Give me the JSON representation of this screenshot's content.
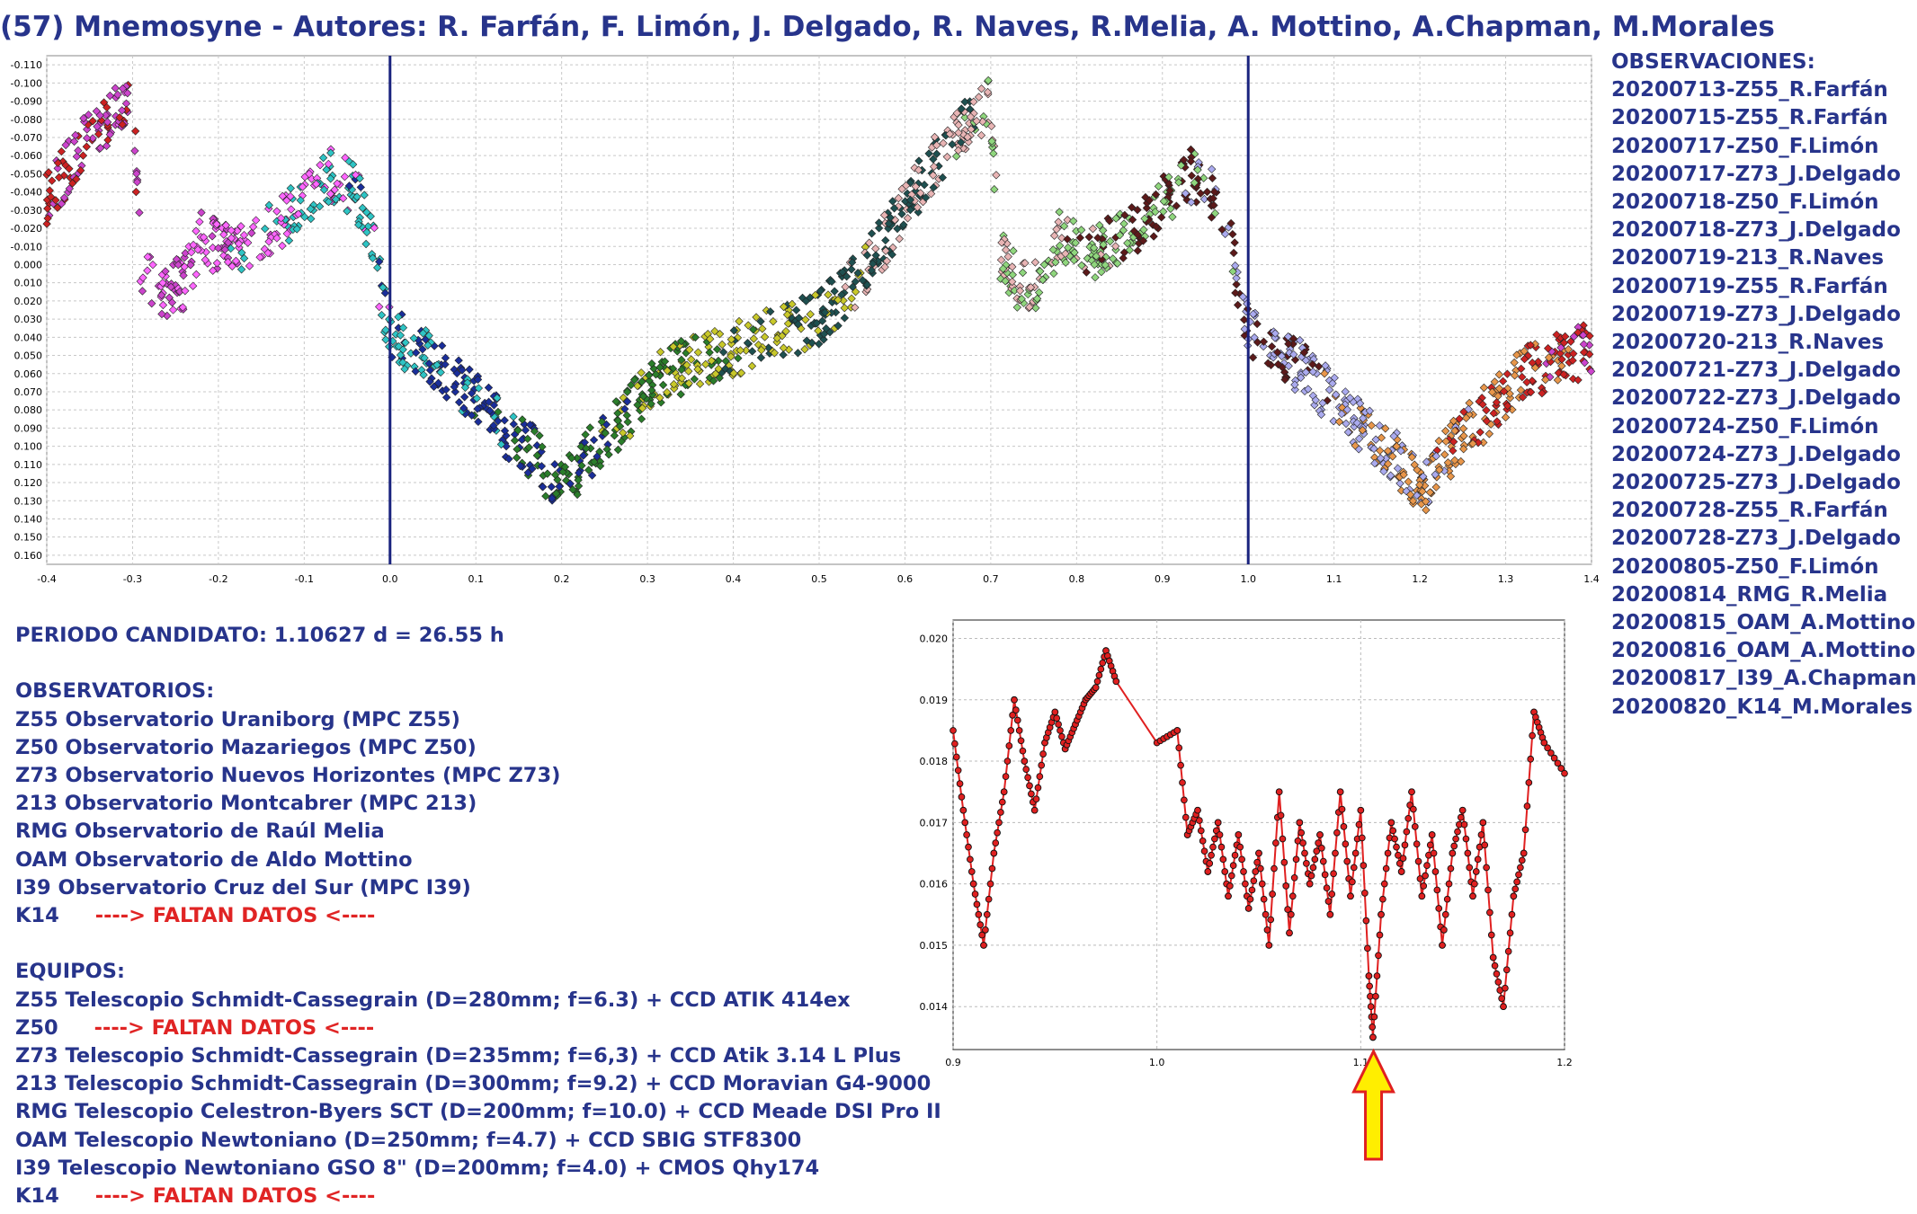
{
  "title": "(57) Mnemosyne - Autores: R. Farfán, F. Limón, J. Delgado, R. Naves, R.Melia, A. Mottino, A.Chapman, M.Morales",
  "observations": {
    "heading": "OBSERVACIONES:",
    "items": [
      "20200713-Z55_R.Farfán",
      "20200715-Z55_R.Farfán",
      "20200717-Z50_F.Limón",
      "20200717-Z73_J.Delgado",
      "20200718-Z50_F.Limón",
      "20200718-Z73_J.Delgado",
      "20200719-213_R.Naves",
      "20200719-Z55_R.Farfán",
      "20200719-Z73_J.Delgado",
      "20200720-213_R.Naves",
      "20200721-Z73_J.Delgado",
      "20200722-Z73_J.Delgado",
      "20200724-Z50_F.Limón",
      "20200724-Z73_J.Delgado",
      "20200725-Z73_J.Delgado",
      "20200728-Z55_R.Farfán",
      "20200728-Z73_J.Delgado",
      "20200805-Z50_F.Limón",
      "20200814_RMG_R.Melia",
      "20200815_OAM_A.Mottino",
      "20200816_OAM_A.Mottino",
      "20200817_I39_A.Chapman",
      "20200820_K14_M.Morales"
    ]
  },
  "period": "PERIODO CANDIDATO: 1.10627 d = 26.55 h",
  "observatories": {
    "heading": "OBSERVATORIOS:",
    "items": [
      "Z55 Observatorio Uraniborg (MPC Z55)",
      "Z50 Observatorio Mazariegos (MPC Z50)",
      "Z73 Observatorio Nuevos Horizontes (MPC Z73)",
      "213 Observatorio Montcabrer (MPC 213)",
      "RMG Observatorio de Raúl Melia",
      "OAM Observatorio de Aldo Mottino",
      "I39 Observatorio Cruz del Sur (MPC I39)"
    ],
    "missing_code": "K14",
    "missing_text": "----> FALTAN DATOS <----"
  },
  "equipment": {
    "heading": "EQUIPOS:",
    "z55": "Z55 Telescopio Schmidt-Cassegrain (D=280mm; f=6.3) + CCD ATIK 414ex",
    "z50_code": "Z50",
    "z50_missing": "----> FALTAN DATOS <----",
    "rest": [
      "Z73 Telescopio Schmidt-Cassegrain (D=235mm; f=6,3) + CCD Atik 3.14 L Plus",
      "213 Telescopio Schmidt-Cassegrain (D=300mm; f=9.2) + CCD Moravian G4-9000",
      "RMG Telescopio Celestron-Byers SCT (D=200mm; f=10.0) + CCD Meade DSI Pro II",
      "OAM Telescopio Newtoniano (D=250mm; f=4.7) + CCD SBIG STF8300",
      "I39 Telescopio Newtoniano GSO 8\" (D=200mm; f=4.0) + CMOS Qhy174"
    ],
    "k14_code": "K14",
    "k14_missing": "----> FALTAN DATOS <----"
  },
  "chart_data": [
    {
      "type": "scatter",
      "title": "",
      "xlabel": "",
      "ylabel": "",
      "xlim": [
        -0.4,
        1.4
      ],
      "ylim": [
        -0.115,
        0.165
      ],
      "y_inverted": true,
      "x_ticks": [
        "-0.4",
        "-0.3",
        "-0.2",
        "-0.1",
        "0.0",
        "0.1",
        "0.2",
        "0.3",
        "0.4",
        "0.5",
        "0.6",
        "0.7",
        "0.8",
        "0.9",
        "1.0",
        "1.1",
        "1.2",
        "1.3",
        "1.4"
      ],
      "y_ticks": [
        "-0.110",
        "-0.100",
        "-0.090",
        "-0.080",
        "-0.070",
        "-0.060",
        "-0.050",
        "-0.040",
        "-0.030",
        "-0.020",
        "-0.010",
        "0.000",
        "0.010",
        "0.020",
        "0.030",
        "0.040",
        "0.050",
        "0.060",
        "0.070",
        "0.080",
        "0.090",
        "0.100",
        "0.110",
        "0.120",
        "0.130",
        "0.140",
        "0.150",
        "0.160"
      ],
      "grid": true,
      "vlines": [
        0.0,
        1.0
      ],
      "vline_color": "#1a237e",
      "curve": [
        [
          -0.4,
          -0.035
        ],
        [
          -0.36,
          -0.065
        ],
        [
          -0.32,
          -0.085
        ],
        [
          -0.3,
          -0.095
        ],
        [
          -0.29,
          0.005
        ],
        [
          -0.27,
          0.015
        ],
        [
          -0.24,
          0.01
        ],
        [
          -0.22,
          -0.015
        ],
        [
          -0.18,
          -0.005
        ],
        [
          -0.12,
          -0.025
        ],
        [
          -0.07,
          -0.05
        ],
        [
          -0.04,
          -0.04
        ],
        [
          -0.02,
          -0.01
        ],
        [
          0.0,
          0.04
        ],
        [
          0.03,
          0.045
        ],
        [
          0.07,
          0.06
        ],
        [
          0.12,
          0.085
        ],
        [
          0.17,
          0.105
        ],
        [
          0.2,
          0.125
        ],
        [
          0.23,
          0.105
        ],
        [
          0.28,
          0.08
        ],
        [
          0.32,
          0.06
        ],
        [
          0.38,
          0.05
        ],
        [
          0.44,
          0.04
        ],
        [
          0.5,
          0.03
        ],
        [
          0.55,
          0.005
        ],
        [
          0.6,
          -0.03
        ],
        [
          0.64,
          -0.06
        ],
        [
          0.68,
          -0.08
        ],
        [
          0.7,
          -0.09
        ],
        [
          0.71,
          -0.005
        ],
        [
          0.73,
          0.01
        ],
        [
          0.76,
          0.01
        ],
        [
          0.78,
          -0.015
        ],
        [
          0.82,
          -0.005
        ],
        [
          0.88,
          -0.025
        ],
        [
          0.93,
          -0.05
        ],
        [
          0.96,
          -0.04
        ],
        [
          0.98,
          -0.01
        ],
        [
          1.0,
          0.04
        ],
        [
          1.03,
          0.045
        ],
        [
          1.07,
          0.06
        ],
        [
          1.12,
          0.085
        ],
        [
          1.17,
          0.105
        ],
        [
          1.2,
          0.125
        ],
        [
          1.23,
          0.105
        ],
        [
          1.28,
          0.08
        ],
        [
          1.32,
          0.06
        ],
        [
          1.38,
          0.05
        ],
        [
          1.4,
          0.045
        ]
      ],
      "series_colors": [
        "#cc2222",
        "#cc44cc",
        "#ff66ff",
        "#2ec4c4",
        "#1a2e9a",
        "#2a7d2a",
        "#c8c82a",
        "#1e5050",
        "#e8b4b4",
        "#8fd67d",
        "#5c1a1a",
        "#aaaaee",
        "#e8964a"
      ]
    },
    {
      "type": "line",
      "title": "",
      "xlabel": "",
      "ylabel": "",
      "xlim": [
        0.9,
        1.2
      ],
      "ylim": [
        0.0133,
        0.0203
      ],
      "x_ticks": [
        "0.9",
        "1.0",
        "1.1",
        "1.2"
      ],
      "y_ticks": [
        "0.020",
        "0.019",
        "0.018",
        "0.017",
        "0.016",
        "0.015",
        "0.014"
      ],
      "grid": true,
      "marker_color": "#e02020",
      "minimum_x": 1.10627,
      "points": [
        [
          0.9,
          0.0185
        ],
        [
          0.905,
          0.0172
        ],
        [
          0.91,
          0.016
        ],
        [
          0.915,
          0.015
        ],
        [
          0.92,
          0.0165
        ],
        [
          0.925,
          0.0175
        ],
        [
          0.93,
          0.019
        ],
        [
          0.935,
          0.018
        ],
        [
          0.94,
          0.0172
        ],
        [
          0.945,
          0.0183
        ],
        [
          0.95,
          0.0188
        ],
        [
          0.955,
          0.0182
        ],
        [
          0.96,
          0.0186
        ],
        [
          0.965,
          0.019
        ],
        [
          0.97,
          0.0192
        ],
        [
          0.975,
          0.0198
        ],
        [
          0.98,
          0.0193
        ],
        [
          1.0,
          0.0183
        ],
        [
          1.01,
          0.0185
        ],
        [
          1.015,
          0.0168
        ],
        [
          1.02,
          0.0172
        ],
        [
          1.025,
          0.0162
        ],
        [
          1.03,
          0.017
        ],
        [
          1.035,
          0.0158
        ],
        [
          1.04,
          0.0168
        ],
        [
          1.045,
          0.0156
        ],
        [
          1.05,
          0.0165
        ],
        [
          1.055,
          0.015
        ],
        [
          1.06,
          0.0175
        ],
        [
          1.065,
          0.0152
        ],
        [
          1.07,
          0.017
        ],
        [
          1.075,
          0.016
        ],
        [
          1.08,
          0.0168
        ],
        [
          1.085,
          0.0155
        ],
        [
          1.09,
          0.0175
        ],
        [
          1.095,
          0.0158
        ],
        [
          1.1,
          0.0172
        ],
        [
          1.104,
          0.0145
        ],
        [
          1.106,
          0.0135
        ],
        [
          1.11,
          0.0155
        ],
        [
          1.115,
          0.017
        ],
        [
          1.12,
          0.0162
        ],
        [
          1.125,
          0.0175
        ],
        [
          1.13,
          0.0158
        ],
        [
          1.135,
          0.0168
        ],
        [
          1.14,
          0.015
        ],
        [
          1.145,
          0.0165
        ],
        [
          1.15,
          0.0172
        ],
        [
          1.155,
          0.0158
        ],
        [
          1.16,
          0.017
        ],
        [
          1.165,
          0.0148
        ],
        [
          1.17,
          0.014
        ],
        [
          1.175,
          0.0158
        ],
        [
          1.18,
          0.0165
        ],
        [
          1.185,
          0.0188
        ],
        [
          1.19,
          0.0183
        ],
        [
          1.2,
          0.0178
        ]
      ]
    }
  ]
}
